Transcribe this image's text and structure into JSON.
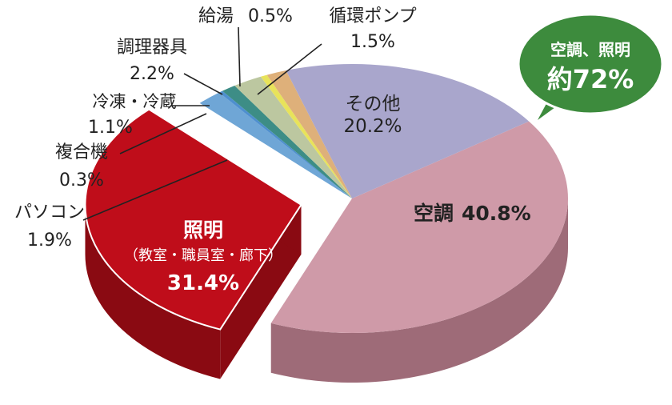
{
  "chart_data": {
    "type": "pie",
    "title": "",
    "slices": [
      {
        "label": "空調",
        "value": 40.8,
        "value_text": "40.8%",
        "color": "#cf9aa8",
        "side_color": "#9e6b78"
      },
      {
        "label": "照明",
        "sublabel": "（教室・職員室・廊下）",
        "value": 31.4,
        "value_text": "31.4%",
        "color": "#bf0d1a",
        "side_color": "#8a0a12",
        "exploded": true
      },
      {
        "label": "パソコン",
        "value": 1.9,
        "value_text": "1.9%",
        "color": "#6fa6d6",
        "side_color": "#3e79ad"
      },
      {
        "label": "複合機",
        "value": 0.3,
        "value_text": "0.3%",
        "color": "#4e8fcf",
        "side_color": "#2f679d"
      },
      {
        "label": "冷凍・冷蔵",
        "value": 1.1,
        "value_text": "1.1%",
        "color": "#3d8d86",
        "side_color": "#276560"
      },
      {
        "label": "調理器具",
        "value": 2.2,
        "value_text": "2.2%",
        "color": "#bcc7a0",
        "side_color": "#8c9672"
      },
      {
        "label": "給湯",
        "value": 0.5,
        "value_text": "0.5%",
        "color": "#e8e35a",
        "side_color": "#b3ae34"
      },
      {
        "label": "循環ポンプ",
        "value": 1.5,
        "value_text": "1.5%",
        "color": "#deb07a",
        "side_color": "#a98050"
      },
      {
        "label": "その他",
        "value": 20.2,
        "value_text": "20.2%",
        "color": "#a9a6cc",
        "side_color": "#7c7aa1"
      }
    ],
    "callout": {
      "line1": "空調、照明",
      "line2": "約72%",
      "color": "#3d8b3d"
    }
  }
}
